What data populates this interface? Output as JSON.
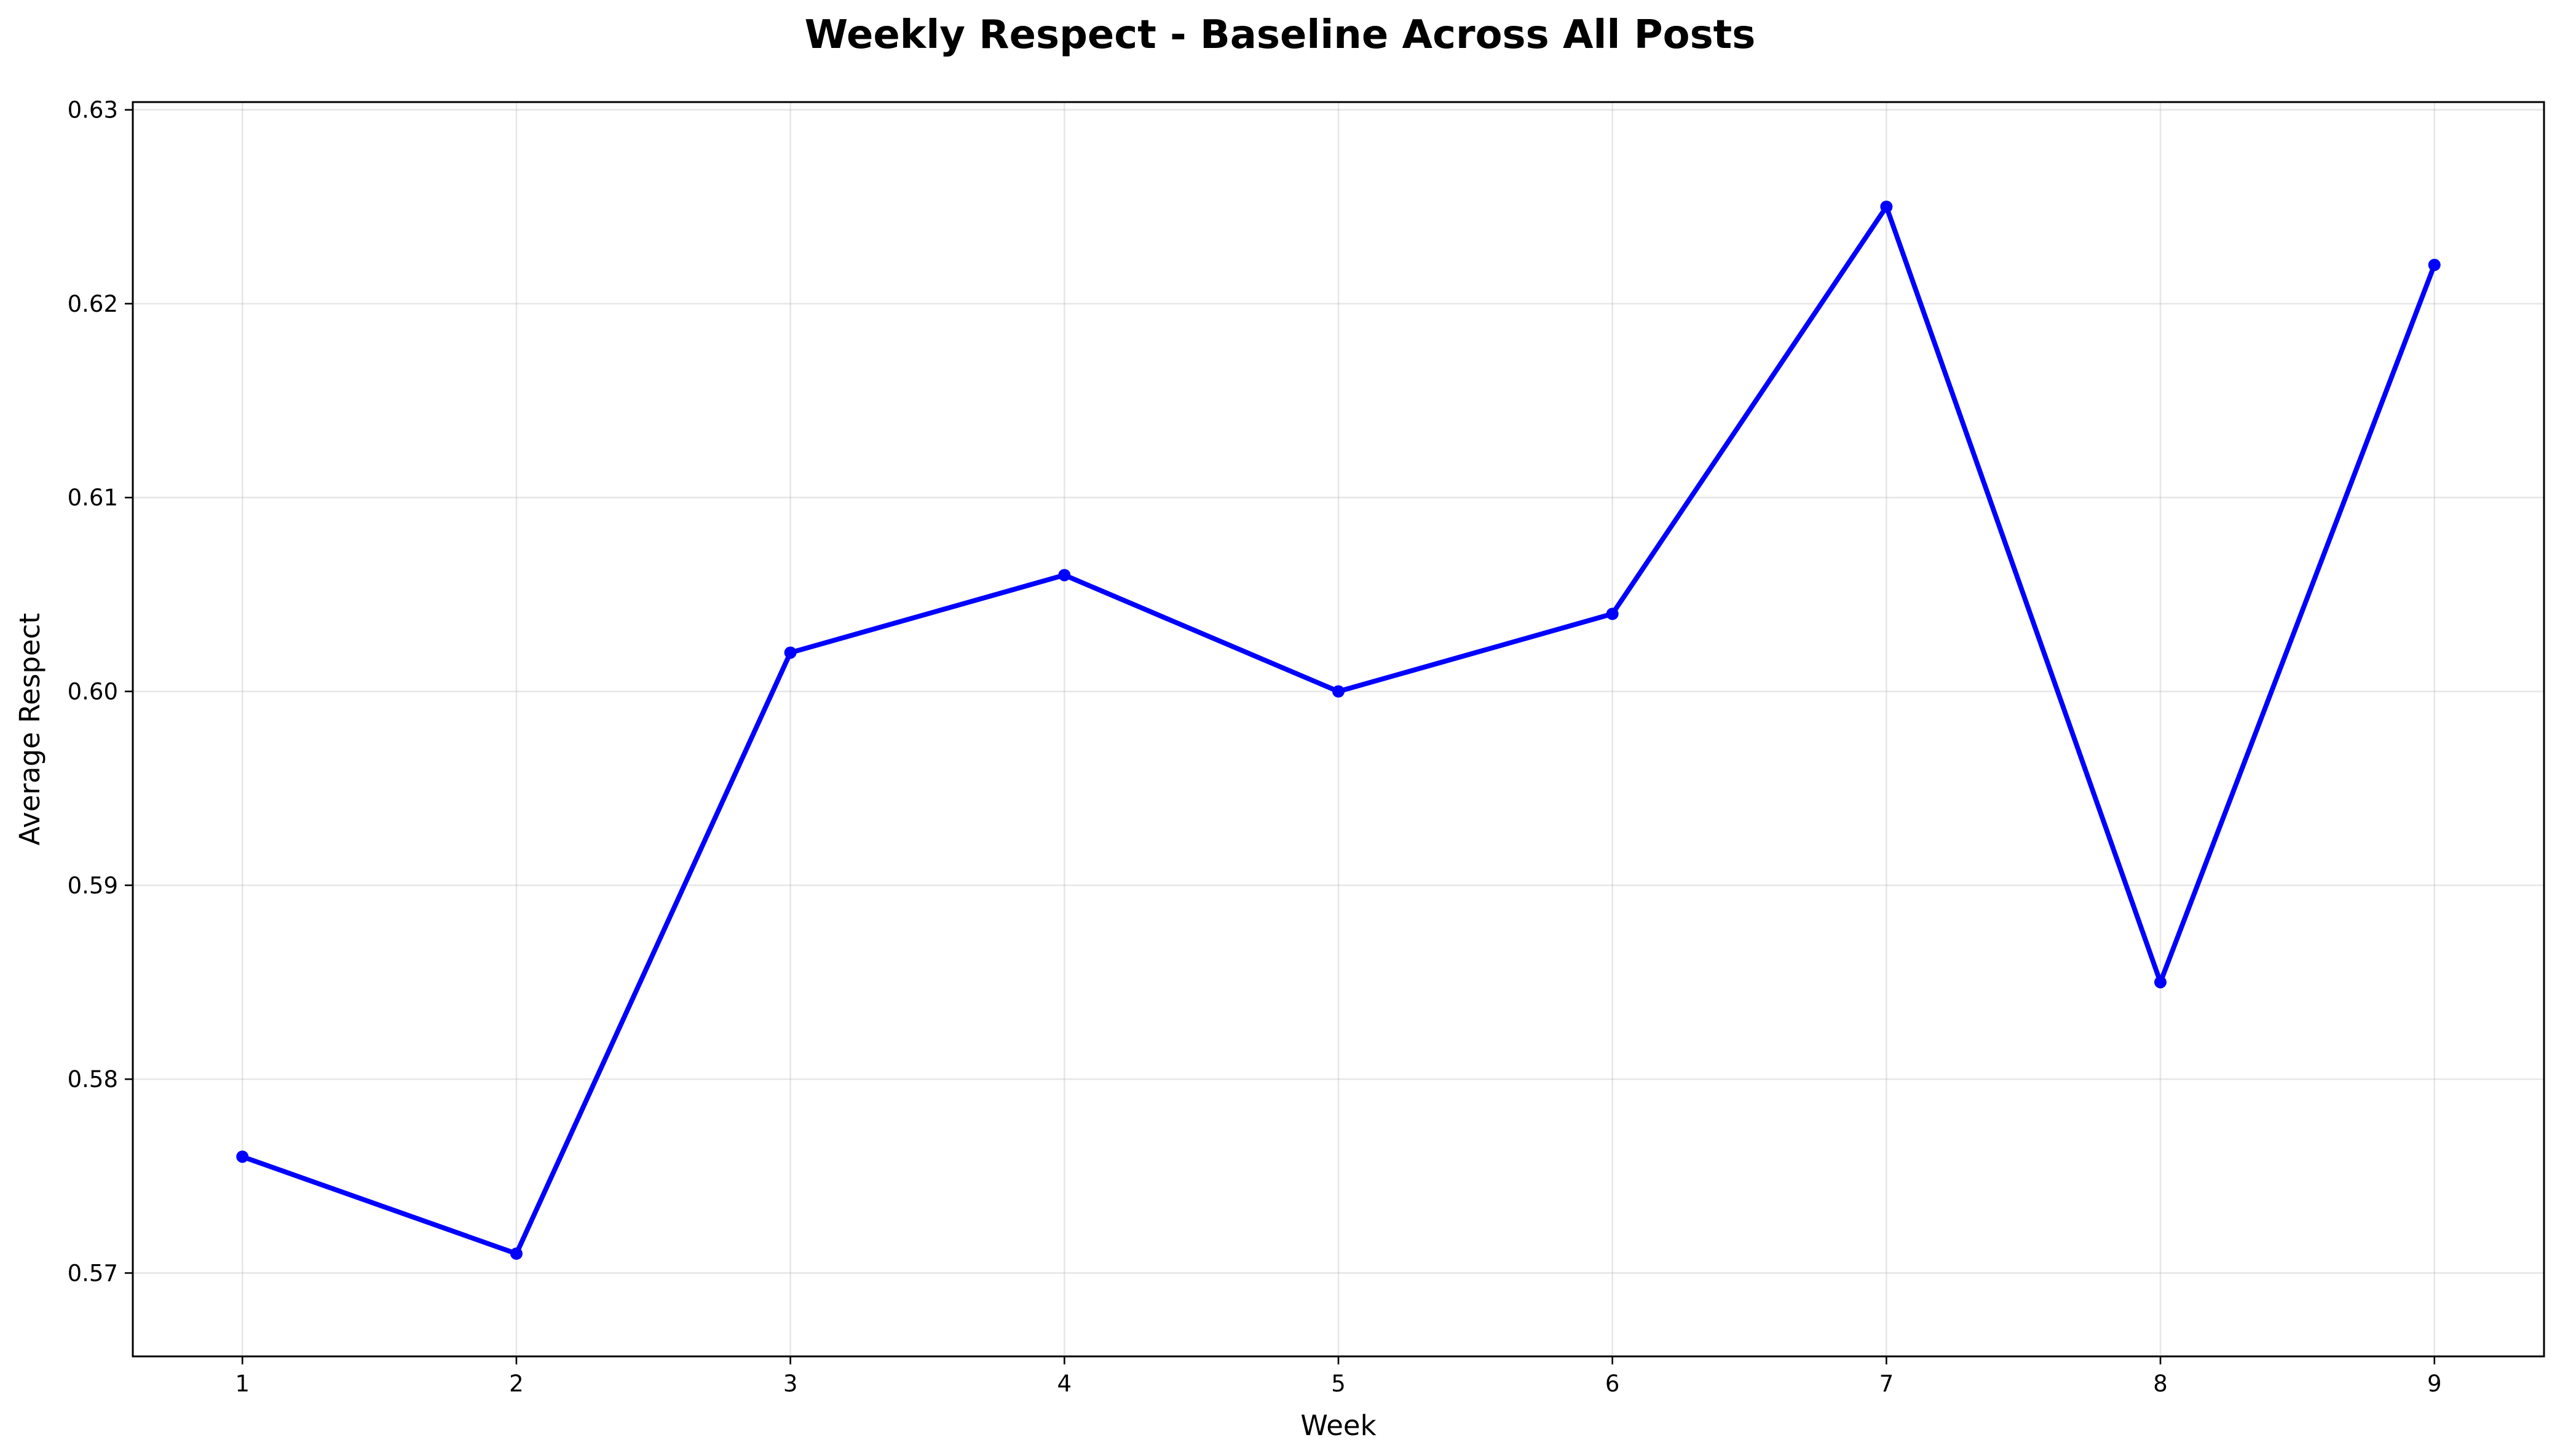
{
  "chart_data": {
    "type": "line",
    "title": "Weekly Respect - Baseline Across All Posts",
    "xlabel": "Week",
    "ylabel": "Average Respect",
    "x": [
      1,
      2,
      3,
      4,
      5,
      6,
      7,
      8,
      9
    ],
    "xticks": [
      "1",
      "2",
      "3",
      "4",
      "5",
      "6",
      "7",
      "8",
      "9"
    ],
    "xlim": [
      0.6,
      9.4
    ],
    "ylim": [
      0.5657,
      0.6304
    ],
    "yticks": [
      "0.57",
      "0.58",
      "0.59",
      "0.60",
      "0.61",
      "0.62",
      "0.63"
    ],
    "series": [
      {
        "color": "#0000ff",
        "marker": "circle",
        "values": [
          0.576,
          0.571,
          0.602,
          0.606,
          0.6,
          0.604,
          0.625,
          0.585,
          0.622
        ]
      }
    ],
    "grid": true,
    "legend": "none"
  }
}
